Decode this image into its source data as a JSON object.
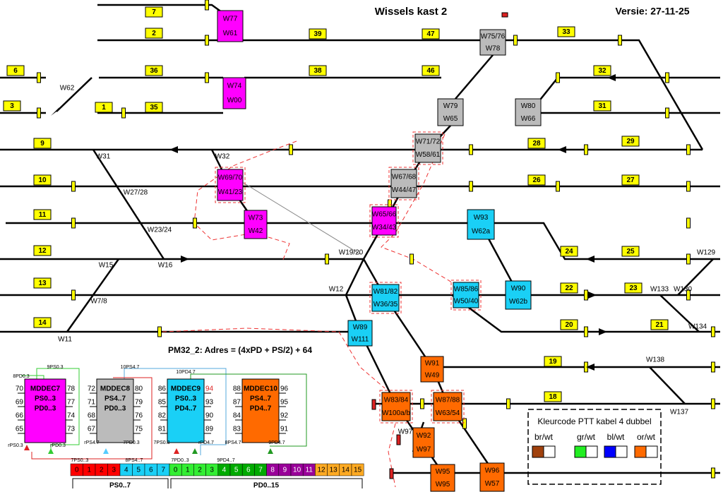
{
  "header": {
    "title": "Wissels kast 2",
    "version": "Versie: 27-11-25"
  },
  "blocks": [
    "7",
    "2",
    "39",
    "47",
    "33",
    "6",
    "36",
    "38",
    "46",
    "32",
    "3",
    "1",
    "35",
    "31",
    "9",
    "28",
    "29",
    "10",
    "26",
    "27",
    "11",
    "12",
    "24",
    "25",
    "13",
    "22",
    "23",
    "14",
    "20",
    "21",
    "19",
    "18"
  ],
  "switches": [
    {
      "top": "W77",
      "bottom": "W61"
    },
    {
      "top": "W74",
      "bottom": "W00"
    },
    {
      "top": "W69/70",
      "bottom": "W41/23"
    },
    {
      "top": "W73",
      "bottom": "W42"
    },
    {
      "top": "W65/66",
      "bottom": "W34/43"
    },
    {
      "top": "W75/76",
      "bottom": "W78"
    },
    {
      "top": "W79",
      "bottom": "W65"
    },
    {
      "top": "W80",
      "bottom": "W66"
    },
    {
      "top": "W71/72",
      "bottom": "W58/61"
    },
    {
      "top": "W67/68",
      "bottom": "W44/47"
    },
    {
      "top": "W93",
      "bottom": "W62a"
    },
    {
      "top": "W81/82",
      "bottom": "W36/35"
    },
    {
      "top": "W85/86",
      "bottom": "W50/40"
    },
    {
      "top": "W90",
      "bottom": "W62b"
    },
    {
      "top": "W89",
      "bottom": "W111"
    },
    {
      "top": "W91",
      "bottom": "W49"
    },
    {
      "top": "W83/84",
      "bottom": "W100a/b"
    },
    {
      "top": "W87/88",
      "bottom": "W63/54"
    },
    {
      "top": "W92",
      "bottom": "W97"
    },
    {
      "top": "W95",
      "bottom": "W95"
    },
    {
      "top": "W96",
      "bottom": "W57"
    }
  ],
  "switch_labels": [
    "W62",
    "W31",
    "W32",
    "W27/28",
    "W23/24",
    "W15",
    "W16",
    "W19/20",
    "W12",
    "W7/8",
    "W11",
    "W129",
    "W133",
    "W130",
    "W134",
    "W138",
    "W137",
    "W97"
  ],
  "formula": "PM32_2: Adres = (4xPD + PS/2) + 64",
  "decoders": [
    {
      "name": "MDDEC7",
      "line1": "PS0..3",
      "line2": "PD0..3",
      "left": [
        70,
        69,
        66,
        65
      ],
      "right": [
        78,
        77,
        74,
        73
      ]
    },
    {
      "name": "MDDEC8",
      "line1": "PS4..7",
      "line2": "PD0..3",
      "left": [
        72,
        71,
        68,
        67
      ],
      "right": [
        80,
        79,
        76,
        75
      ]
    },
    {
      "name": "MDDEC9",
      "line1": "PS0..3",
      "line2": "PD4..7",
      "left": [
        86,
        85,
        82,
        81
      ],
      "right": [
        94,
        93,
        90,
        89
      ]
    },
    {
      "name": "MDDEC10",
      "line1": "PS4..7",
      "line2": "PD4..7",
      "left": [
        88,
        87,
        84,
        83
      ],
      "right": [
        96,
        95,
        92,
        91
      ]
    }
  ],
  "wire_labels": [
    "8PD0.3",
    "9PS0.3",
    "10PS4.7",
    "10PD4.7",
    "rPS0.3",
    "rPD0.3",
    "rPS4.7",
    "7PD0.3",
    "7PS0.3",
    "rPD4.7",
    "8PS4.7",
    "9PD4.7"
  ],
  "bus": {
    "labels": [
      "7PS0..3",
      "8PS4..7",
      "7PD0..3",
      "9PD4..7"
    ],
    "ps": [
      0,
      1,
      2,
      3,
      4,
      5,
      6,
      7
    ],
    "pd": [
      0,
      1,
      2,
      3,
      4,
      5,
      6,
      7,
      8,
      9,
      10,
      11,
      12,
      13,
      14,
      15
    ],
    "groups": [
      "PS0..7",
      "PD0..15"
    ]
  },
  "legend": {
    "title": "Kleurcode PTT kabel 4 dubbel",
    "items": [
      "br/wt",
      "gr/wt",
      "bl/wt",
      "or/wt"
    ]
  }
}
